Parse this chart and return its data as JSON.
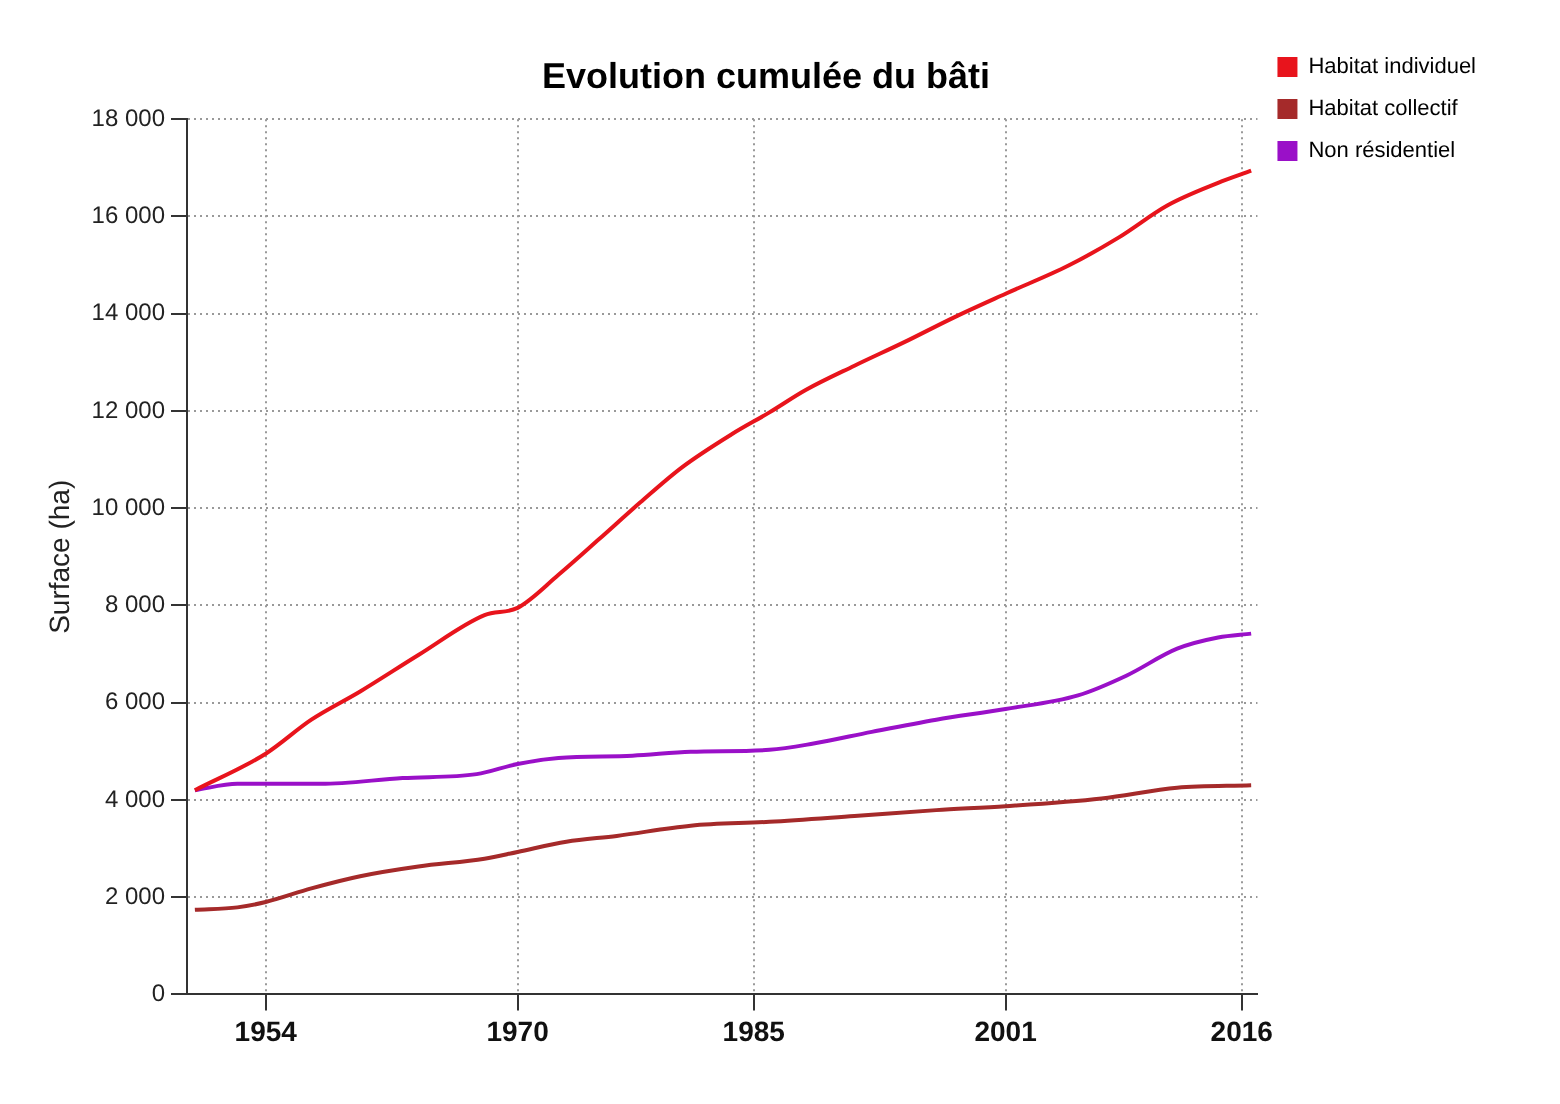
{
  "chart_data": {
    "type": "line",
    "title": "Evolution cumulée du bâti",
    "ylabel": "Surface (ha)",
    "xlim": [
      1949,
      2017
    ],
    "xticks": [
      1954,
      1970,
      1985,
      2001,
      2016
    ],
    "ylim": [
      0,
      18000
    ],
    "yticks": [
      {
        "value": 0,
        "label": "0"
      },
      {
        "value": 2000,
        "label": "2 000"
      },
      {
        "value": 4000,
        "label": "4 000"
      },
      {
        "value": 6000,
        "label": "6 000"
      },
      {
        "value": 8000,
        "label": "8 000"
      },
      {
        "value": 10000,
        "label": "10 000"
      },
      {
        "value": 12000,
        "label": "12 000"
      },
      {
        "value": 14000,
        "label": "14 000"
      },
      {
        "value": 16000,
        "label": "16 000"
      },
      {
        "value": 18000,
        "label": "18 000"
      }
    ],
    "grid": true,
    "legend": "top right",
    "marker": "none",
    "line_style": "solid",
    "series": [
      {
        "name": "Habitat individuel",
        "color": "#e8141c",
        "x": [
          1949.5,
          1954,
          1956.9,
          1960,
          1963.7,
          1967.9,
          1970,
          1972.6,
          1975.2,
          1977.8,
          1980.4,
          1983.6,
          1986,
          1988.3,
          1991.4,
          1994.6,
          1997.7,
          2001,
          2005,
          2008.2,
          2011.3,
          2014.5,
          2016.6
        ],
        "values": [
          4200,
          4950,
          5650,
          6230,
          6980,
          7800,
          7950,
          8630,
          9370,
          10120,
          10830,
          11520,
          11970,
          12430,
          12930,
          13420,
          13920,
          14410,
          14990,
          15570,
          16230,
          16690,
          16940
        ]
      },
      {
        "name": "Habitat collectif",
        "color": "#a52a2a",
        "x": [
          1949.5,
          1952.2,
          1954,
          1956.9,
          1960,
          1963.7,
          1967.9,
          1970,
          1973.1,
          1976.3,
          1981,
          1986,
          1991.4,
          1996.6,
          2001,
          2007.1,
          2011.9,
          2016.6
        ],
        "values": [
          1740,
          1790,
          1900,
          2180,
          2430,
          2630,
          2790,
          2930,
          3140,
          3260,
          3470,
          3550,
          3670,
          3790,
          3870,
          4030,
          4250,
          4300
        ]
      },
      {
        "name": "Non résidentiel",
        "color": "#9a10c8",
        "x": [
          1949.5,
          1952.2,
          1957.5,
          1962.7,
          1967.4,
          1970,
          1972.6,
          1977.3,
          1981,
          1986,
          1988.8,
          1992.5,
          1996.6,
          2001,
          2005.6,
          2008.7,
          2011.9,
          2014.5,
          2016.6
        ],
        "values": [
          4200,
          4330,
          4330,
          4450,
          4530,
          4740,
          4860,
          4910,
          4990,
          5030,
          5160,
          5400,
          5650,
          5870,
          6150,
          6560,
          7110,
          7340,
          7420
        ]
      }
    ]
  }
}
